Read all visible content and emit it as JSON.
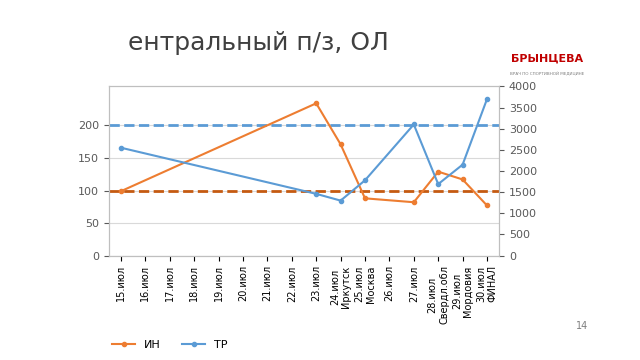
{
  "chart_data": {
    "type": "line",
    "title": "ентральный п/з, ОЛ",
    "annotations": [
      "БРЫНЦЕВА",
      "ВРАЧ ПО СПОРТИВНОЙ МЕДИЦИНЕ",
      "14"
    ],
    "categories": [
      "15.июл",
      "16.июл",
      "17.июл",
      "18.июл",
      "19.июл",
      "20.июл",
      "21.июл",
      "22.июл",
      "23.июл",
      "24.июл\nИркутск",
      "25.июл\nМосква",
      "26.июл",
      "27.июл",
      "28.июл\nСвердл.обл",
      "29.июл\nМордовия",
      "30.июл\nФИНАЛ"
    ],
    "series": [
      {
        "name": "ИН",
        "color": "#ed7d31",
        "marker": "circle",
        "values": [
          99,
          null,
          null,
          null,
          null,
          null,
          null,
          null,
          234,
          171,
          88,
          null,
          82,
          129,
          117,
          77
        ]
      },
      {
        "name": "ТР",
        "color": "#5b9bd5",
        "marker": "circle",
        "axis": "y2",
        "values": [
          2550,
          null,
          null,
          null,
          null,
          null,
          null,
          null,
          1460,
          1300,
          1780,
          null,
          3100,
          1690,
          2150,
          3700
        ]
      }
    ],
    "reference_lines": [
      {
        "value": 200,
        "color": "#5b9bd5"
      },
      {
        "value": 100,
        "color": "#c55a11"
      }
    ],
    "ylim": [
      0,
      260
    ],
    "yticks": [
      0,
      50,
      100,
      150,
      200
    ],
    "y2lim": [
      0,
      4000
    ],
    "y2ticks": [
      0,
      500,
      1000,
      1500,
      2000,
      2500,
      3000,
      3500,
      4000
    ],
    "grid": true,
    "legend": "lower left"
  }
}
